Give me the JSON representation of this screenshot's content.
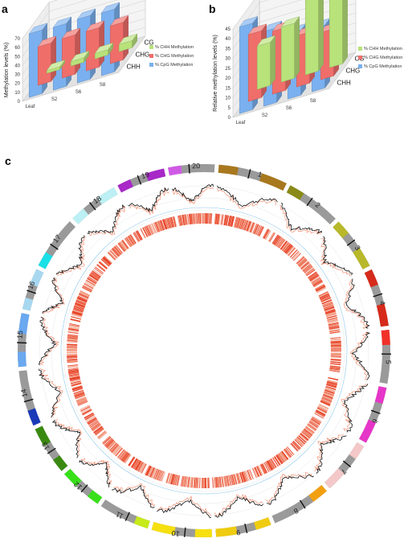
{
  "panels": {
    "a": "a",
    "b": "b",
    "c": "c"
  },
  "chart_data": [
    {
      "panel": "a",
      "type": "bar",
      "style": "3d-grouped",
      "categories": [
        "Leaf",
        "S2",
        "S6",
        "S8"
      ],
      "series": [
        {
          "name": "% CHH Methylation",
          "row": "CHH",
          "color": "#b8e27a",
          "values": [
            3,
            5,
            6,
            8
          ]
        },
        {
          "name": "% CHG Methylation",
          "row": "CHG",
          "color": "#ef6e6a",
          "values": [
            43,
            44,
            44,
            42
          ]
        },
        {
          "name": "% CpG Methylation",
          "row": "CG",
          "color": "#7ab0ef",
          "values": [
            71,
            70,
            71,
            70
          ]
        }
      ],
      "row_labels": [
        "CG",
        "CHG",
        "CHH"
      ],
      "ylabel": "Methylation levels (%)",
      "yticks": [
        "0",
        "10",
        "20",
        "30",
        "40",
        "50",
        "60",
        "70"
      ],
      "ylim": [
        0,
        70
      ],
      "legend_position": "right"
    },
    {
      "panel": "b",
      "type": "bar",
      "style": "3d-grouped",
      "categories": [
        "Leaf",
        "S2",
        "S6",
        "S8"
      ],
      "series": [
        {
          "name": "% CHH Methylation",
          "row": "CHH",
          "color": "#b8e27a",
          "values": [
            22,
            28,
            38,
            38
          ]
        },
        {
          "name": "% CHG Methylation",
          "row": "CHG",
          "color": "#ef6e6a",
          "values": [
            34,
            32,
            26,
            24
          ]
        },
        {
          "name": "% CpG Methylation",
          "row": "CG",
          "color": "#7ab0ef",
          "values": [
            44,
            38,
            33,
            32
          ]
        }
      ],
      "row_labels": [
        "CG",
        "CHG",
        "CHH"
      ],
      "ylabel": "Relative methylation levels (%)",
      "yticks": [
        "0",
        "5",
        "10",
        "15",
        "20",
        "25",
        "30",
        "35",
        "40",
        "45"
      ],
      "ylim": [
        0,
        45
      ],
      "legend_position": "right"
    },
    {
      "panel": "c",
      "type": "circos",
      "chromosomes": [
        {
          "id": "1",
          "color": "#a8781e",
          "length": 60
        },
        {
          "id": "2",
          "color": "#8a8a18",
          "length": 48
        },
        {
          "id": "3",
          "color": "#b8b82a",
          "length": 46
        },
        {
          "id": "4",
          "color": "#d62a1a",
          "length": 50
        },
        {
          "id": "5",
          "color": "#f2302a",
          "length": 46
        },
        {
          "id": "6",
          "color": "#e636c8",
          "length": 50
        },
        {
          "id": "7",
          "color": "#f4c8c8",
          "length": 46
        },
        {
          "id": "8",
          "color": "#f3a010",
          "length": 52
        },
        {
          "id": "9",
          "color": "#f0cc10",
          "length": 48
        },
        {
          "id": "10",
          "color": "#f6e010",
          "length": 52
        },
        {
          "id": "11",
          "color": "#c6ea1a",
          "length": 44
        },
        {
          "id": "12",
          "color": "#38e01a",
          "length": 38
        },
        {
          "id": "13",
          "color": "#3a8a12",
          "length": 42
        },
        {
          "id": "14",
          "color": "#1a3ab8",
          "length": 48
        },
        {
          "id": "15",
          "color": "#6aa8f0",
          "length": 46
        },
        {
          "id": "16",
          "color": "#a8d8f0",
          "length": 36
        },
        {
          "id": "17",
          "color": "#18e0e6",
          "length": 46
        },
        {
          "id": "18",
          "color": "#bcf0f4",
          "length": 44
        },
        {
          "id": "19",
          "color": "#a828c8",
          "length": 42
        },
        {
          "id": "20",
          "color": "#d05ae6",
          "length": 40
        }
      ],
      "tracks": [
        "chromosome ideogram",
        "methylation level line plot",
        "feature density heat strip"
      ]
    }
  ]
}
